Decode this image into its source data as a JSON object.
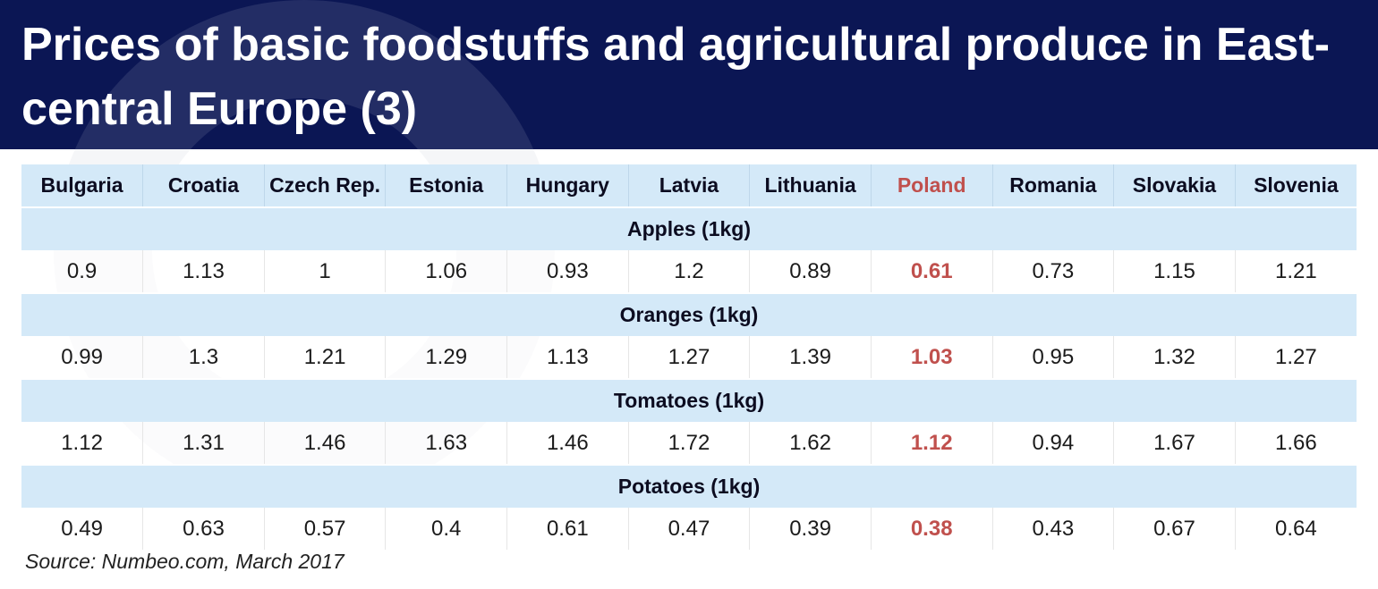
{
  "title": "Prices of basic foodstuffs and agricultural produce in East-central Europe (3)",
  "source": "Source: Numbeo.com, March 2017",
  "colors": {
    "header_bg": "#0b1654",
    "table_band": "#d4e9f8",
    "highlight": "#c0504d"
  },
  "highlight_column": "Poland",
  "chart_data": {
    "type": "table",
    "columns": [
      "Bulgaria",
      "Croatia",
      "Czech Rep.",
      "Estonia",
      "Hungary",
      "Latvia",
      "Lithuania",
      "Poland",
      "Romania",
      "Slovakia",
      "Slovenia"
    ],
    "sections": [
      {
        "label": "Apples (1kg)",
        "values": [
          "0.9",
          "1.13",
          "1",
          "1.06",
          "0.93",
          "1.2",
          "0.89",
          "0.61",
          "0.73",
          "1.15",
          "1.21"
        ]
      },
      {
        "label": "Oranges (1kg)",
        "values": [
          "0.99",
          "1.3",
          "1.21",
          "1.29",
          "1.13",
          "1.27",
          "1.39",
          "1.03",
          "0.95",
          "1.32",
          "1.27"
        ]
      },
      {
        "label": "Tomatoes (1kg)",
        "values": [
          "1.12",
          "1.31",
          "1.46",
          "1.63",
          "1.46",
          "1.72",
          "1.62",
          "1.12",
          "0.94",
          "1.67",
          "1.66"
        ]
      },
      {
        "label": "Potatoes (1kg)",
        "values": [
          "0.49",
          "0.63",
          "0.57",
          "0.4",
          "0.61",
          "0.47",
          "0.39",
          "0.38",
          "0.43",
          "0.67",
          "0.64"
        ]
      }
    ]
  }
}
